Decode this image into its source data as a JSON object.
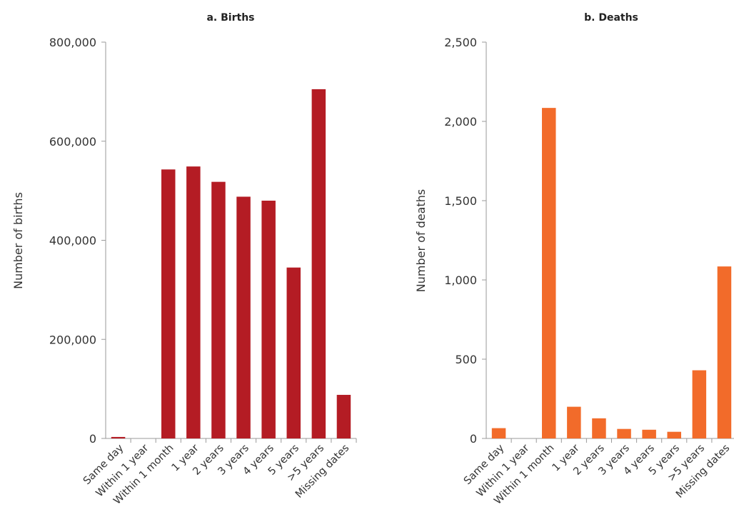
{
  "chart_data": [
    {
      "type": "bar",
      "title": "a. Births",
      "xlabel": "",
      "ylabel": "Number of births",
      "ylim": [
        0,
        800000
      ],
      "yticks": [
        0,
        200000,
        400000,
        600000,
        800000
      ],
      "ytick_labels": [
        "0",
        "200,000",
        "400,000",
        "600,000",
        "800,000"
      ],
      "categories": [
        "Same day",
        "Within 1 year",
        "Within 1 month",
        "1 year",
        "2 years",
        "3 years",
        "4 years",
        "5 years",
        ">5 years",
        "Missing dates"
      ],
      "values": [
        3000,
        0,
        543000,
        549000,
        518000,
        488000,
        480000,
        345000,
        705000,
        88000
      ],
      "color": "#b41c24",
      "grid": false,
      "legend": "none"
    },
    {
      "type": "bar",
      "title": "b. Deaths",
      "xlabel": "",
      "ylabel": "Number of deaths",
      "ylim": [
        0,
        2500
      ],
      "yticks": [
        0,
        500,
        1000,
        1500,
        2000,
        2500
      ],
      "ytick_labels": [
        "0",
        "500",
        "1,000",
        "1,500",
        "2,000",
        "2,500"
      ],
      "categories": [
        "Same day",
        "Within 1 year",
        "Within 1 month",
        "1 year",
        "2 years",
        "3 years",
        "4 years",
        "5 years",
        ">5 years",
        "Missing dates"
      ],
      "values": [
        65,
        0,
        2085,
        200,
        127,
        60,
        55,
        42,
        430,
        1085
      ],
      "color": "#f26b2a",
      "grid": false,
      "legend": "none"
    }
  ]
}
